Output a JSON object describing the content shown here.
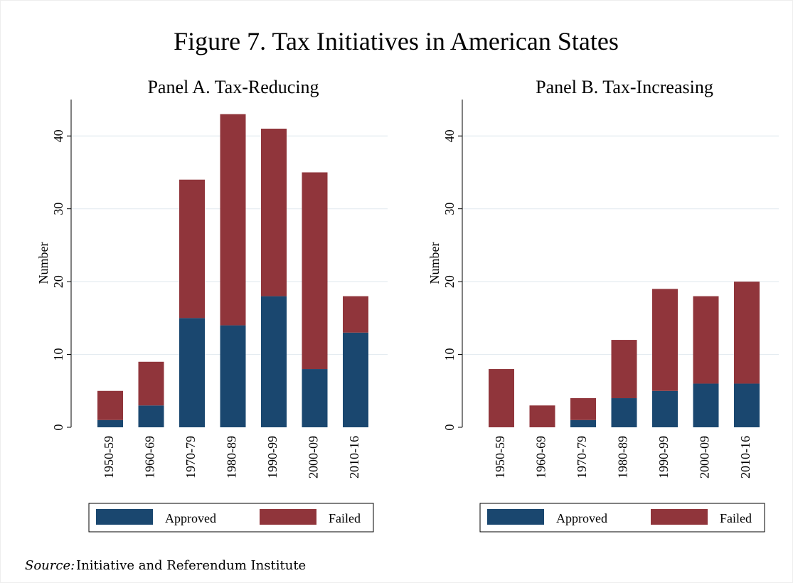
{
  "title": "Figure 7. Tax Initiatives in American States",
  "source_label": "Source:",
  "source": "Initiative and Referendum Institute",
  "chart_data": [
    {
      "type": "stacked_bar",
      "title": "Panel A. Tax-Reducing",
      "ylabel": "Number",
      "categories": [
        "1950-59",
        "1960-69",
        "1970-79",
        "1980-89",
        "1990-99",
        "2000-09",
        "2010-16"
      ],
      "series": [
        {
          "name": "Approved",
          "color": "#1a476f",
          "values": [
            1,
            3,
            15,
            14,
            18,
            8,
            13
          ]
        },
        {
          "name": "Failed",
          "color": "#90353b",
          "values": [
            4,
            6,
            19,
            29,
            23,
            27,
            5
          ]
        }
      ],
      "ylim": [
        0,
        45
      ],
      "yticks": [
        0,
        10,
        20,
        30,
        40
      ],
      "grid": true,
      "legend": "bottom"
    },
    {
      "type": "stacked_bar",
      "title": "Panel B. Tax-Increasing",
      "ylabel": "Number",
      "categories": [
        "1950-59",
        "1960-69",
        "1970-79",
        "1980-89",
        "1990-99",
        "2000-09",
        "2010-16"
      ],
      "series": [
        {
          "name": "Approved",
          "color": "#1a476f",
          "values": [
            0,
            0,
            1,
            4,
            5,
            6,
            6
          ]
        },
        {
          "name": "Failed",
          "color": "#90353b",
          "values": [
            8,
            3,
            3,
            8,
            14,
            12,
            14
          ]
        }
      ],
      "ylim": [
        0,
        45
      ],
      "yticks": [
        0,
        10,
        20,
        30,
        40
      ],
      "grid": true,
      "legend": "bottom"
    }
  ]
}
